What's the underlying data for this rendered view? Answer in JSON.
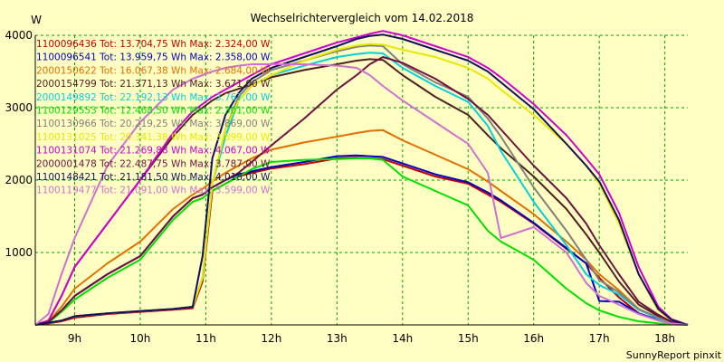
{
  "chart_data": {
    "type": "line",
    "title": "Wechselrichtervergleich vom 14.02.2018",
    "ylabel": "W",
    "footer": "SunnyReport pinxit",
    "ylim": [
      0,
      4000
    ],
    "xlim": [
      8.4,
      18.35
    ],
    "yticks": [
      1000,
      2000,
      3000,
      4000
    ],
    "xticks": [
      {
        "value": 9,
        "label": "9h"
      },
      {
        "value": 10,
        "label": "10h"
      },
      {
        "value": 11,
        "label": "11h"
      },
      {
        "value": 12,
        "label": "12h"
      },
      {
        "value": 13,
        "label": "13h"
      },
      {
        "value": 14,
        "label": "14h"
      },
      {
        "value": 15,
        "label": "15h"
      },
      {
        "value": 16,
        "label": "16h"
      },
      {
        "value": 17,
        "label": "17h"
      },
      {
        "value": 18,
        "label": "18h"
      }
    ],
    "grid": true,
    "legend_position": "top-left",
    "x": [
      8.4,
      8.6,
      8.8,
      9.0,
      9.5,
      10.0,
      10.5,
      10.8,
      10.95,
      11.1,
      11.3,
      11.5,
      11.7,
      12.0,
      12.5,
      13.0,
      13.3,
      13.5,
      13.7,
      14.0,
      14.5,
      15.0,
      15.3,
      15.5,
      16.0,
      16.5,
      16.8,
      17.0,
      17.3,
      17.6,
      17.9,
      18.1,
      18.35
    ],
    "series": [
      {
        "name": "1100096436",
        "label": "1100096436 Tot: 13.704,75 Wh Max: 2.324,00 W",
        "color": "#c00000",
        "values": [
          0,
          20,
          50,
          100,
          150,
          180,
          210,
          230,
          600,
          1850,
          1950,
          2050,
          2100,
          2160,
          2220,
          2300,
          2310,
          2300,
          2290,
          2200,
          2050,
          1950,
          1800,
          1700,
          1400,
          1050,
          850,
          650,
          380,
          160,
          60,
          20,
          0
        ]
      },
      {
        "name": "1100096541",
        "label": "1100096541 Tot: 13.959,75 Wh Max: 2.358,00 W",
        "color": "#0000c0",
        "values": [
          0,
          40,
          200,
          400,
          700,
          950,
          1500,
          1750,
          1800,
          1900,
          2000,
          2080,
          2120,
          2180,
          2250,
          2330,
          2340,
          2330,
          2320,
          2230,
          2080,
          1970,
          1830,
          1720,
          1410,
          1060,
          850,
          330,
          320,
          160,
          70,
          25,
          0
        ]
      },
      {
        "name": "2000150622",
        "label": "2000150622 Tot: 16.067,38 Wh Max: 2.684,00 W",
        "color": "#e07000",
        "values": [
          0,
          50,
          250,
          500,
          850,
          1150,
          1600,
          1800,
          1880,
          1980,
          2100,
          2200,
          2300,
          2420,
          2520,
          2600,
          2650,
          2680,
          2690,
          2550,
          2350,
          2150,
          1980,
          1850,
          1530,
          1150,
          900,
          700,
          480,
          220,
          90,
          30,
          0
        ]
      },
      {
        "name": "2000154799",
        "label": "2000154799 Tot: 21.371,13 Wh Max: 3.671,00 W",
        "color": "#502020",
        "values": [
          0,
          60,
          400,
          800,
          1400,
          2000,
          2600,
          2900,
          3000,
          3100,
          3200,
          3260,
          3320,
          3420,
          3520,
          3600,
          3650,
          3670,
          3660,
          3450,
          3150,
          2900,
          2620,
          2440,
          2050,
          1600,
          1250,
          1000,
          600,
          280,
          120,
          40,
          0
        ]
      },
      {
        "name": "2000149892",
        "label": "2000149892 Tot: 22.192,13 Wh Max: 3.767,00 W",
        "color": "#00d0e0",
        "values": [
          0,
          30,
          60,
          120,
          160,
          190,
          220,
          250,
          650,
          1950,
          2600,
          3100,
          3300,
          3450,
          3580,
          3700,
          3740,
          3760,
          3750,
          3550,
          3300,
          3080,
          2750,
          2400,
          1700,
          1100,
          700,
          550,
          420,
          210,
          90,
          25,
          0
        ]
      },
      {
        "name": "1100129553",
        "label": "1100129553 Tot: 12.468,50 Wh Max: 2.301,00 W",
        "color": "#00e000",
        "values": [
          0,
          30,
          180,
          350,
          650,
          900,
          1450,
          1700,
          1750,
          1850,
          1950,
          2050,
          2150,
          2250,
          2280,
          2290,
          2300,
          2300,
          2280,
          2050,
          1850,
          1650,
          1300,
          1150,
          900,
          500,
          300,
          200,
          110,
          50,
          20,
          8,
          0
        ]
      },
      {
        "name": "1100130966",
        "label": "1100130966 Tot: 20.219,25 Wh Max: 3.869,00 W",
        "color": "#808080",
        "values": [
          0,
          30,
          60,
          120,
          160,
          190,
          220,
          250,
          650,
          1950,
          2700,
          3150,
          3350,
          3520,
          3650,
          3780,
          3840,
          3860,
          3850,
          3600,
          3350,
          3150,
          2850,
          2600,
          1900,
          1300,
          900,
          620,
          450,
          220,
          100,
          30,
          0
        ]
      },
      {
        "name": "1100131025",
        "label": "1100131025 Tot: 20.341,38 Wh Max: 3.899,00 W",
        "color": "#e8e800",
        "values": [
          0,
          30,
          60,
          120,
          160,
          190,
          220,
          250,
          650,
          1950,
          2700,
          3100,
          3300,
          3450,
          3650,
          3800,
          3860,
          3880,
          3870,
          3800,
          3700,
          3550,
          3400,
          3250,
          2900,
          2500,
          2200,
          1950,
          1400,
          700,
          200,
          60,
          0
        ]
      },
      {
        "name": "1100131074",
        "label": "1100131074 Tot: 21.269,88 Wh Max: 4.067,00 W",
        "color": "#d000d0",
        "values": [
          0,
          60,
          400,
          800,
          1400,
          2000,
          2650,
          2950,
          3050,
          3150,
          3250,
          3350,
          3450,
          3600,
          3750,
          3900,
          3970,
          4020,
          4060,
          4000,
          3850,
          3700,
          3550,
          3420,
          3050,
          2620,
          2300,
          2080,
          1550,
          800,
          250,
          80,
          0
        ]
      },
      {
        "name": "2000001478",
        "label": "2000001478 Tot: 22.487,75 Wh Max: 3.787,00 W",
        "color": "#701040",
        "values": [
          0,
          40,
          200,
          400,
          700,
          950,
          1500,
          1750,
          1800,
          1900,
          2000,
          2100,
          2250,
          2480,
          2850,
          3250,
          3450,
          3600,
          3700,
          3620,
          3400,
          3120,
          2900,
          2700,
          2200,
          1750,
          1400,
          1100,
          700,
          320,
          140,
          40,
          0
        ]
      },
      {
        "name": "1100148421",
        "label": "1100148421 Tot: 21.181,50 Wh Max: 4.018,00 W",
        "color": "#101060",
        "values": [
          0,
          30,
          60,
          120,
          160,
          190,
          220,
          250,
          950,
          2300,
          2900,
          3200,
          3400,
          3550,
          3700,
          3850,
          3950,
          3990,
          4010,
          3950,
          3800,
          3650,
          3500,
          3350,
          2980,
          2500,
          2200,
          1980,
          1450,
          700,
          220,
          70,
          0
        ]
      },
      {
        "name": "1100119477",
        "label": "1100119477 Tot: 21.091,00 Wh Max: 3.599,00 W",
        "color": "#d070d0",
        "values": [
          0,
          150,
          700,
          1200,
          2200,
          2800,
          3250,
          3400,
          3450,
          3500,
          3550,
          3580,
          3600,
          3600,
          3600,
          3580,
          3550,
          3450,
          3300,
          3100,
          2800,
          2500,
          2100,
          1200,
          1350,
          1000,
          580,
          400,
          280,
          150,
          60,
          20,
          0
        ]
      }
    ]
  }
}
